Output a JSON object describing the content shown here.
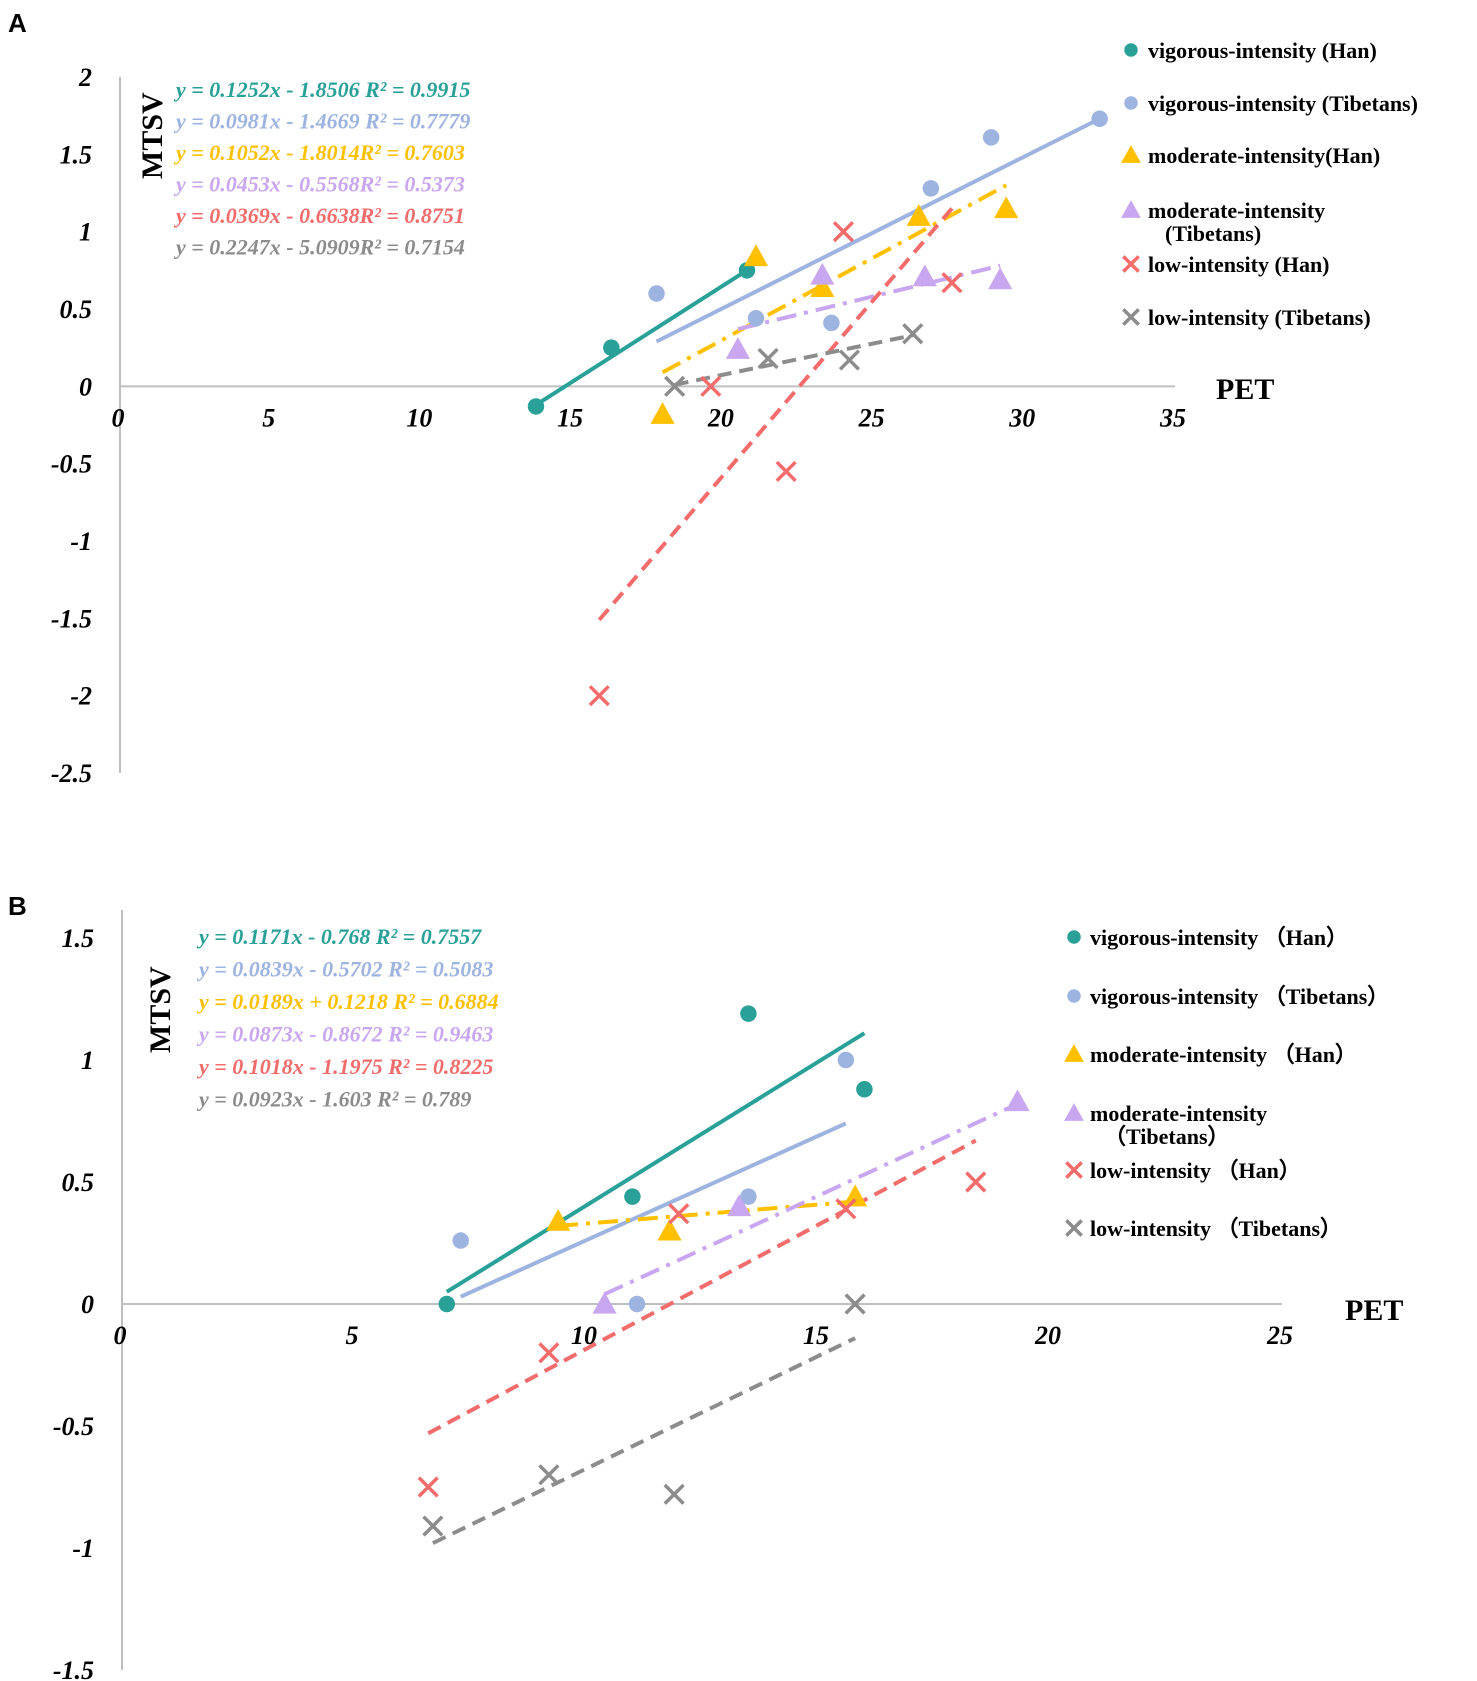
{
  "chart_data": [
    {
      "type": "scatter",
      "panel": "A",
      "xlabel": "PET",
      "ylabel": "MTSV",
      "xlim": [
        0,
        35
      ],
      "ylim": [
        -2.5,
        2
      ],
      "x_ticks": [
        "0",
        "5",
        "10",
        "15",
        "20",
        "25",
        "30",
        "35"
      ],
      "y_ticks": [
        "2",
        "1.5",
        "1",
        "0.5",
        "0",
        "-0.5",
        "-1",
        "-1.5",
        "-2",
        "-2.5"
      ],
      "equations": [
        "y = 0.1252x - 1.8506 R² = 0.9915",
        "y = 0.0981x - 1.4669 R² = 0.7779",
        "y = 0.1052x - 1.8014R² = 0.7603",
        "y = 0.0453x - 0.5568R² = 0.5373",
        "y = 0.0369x - 0.6638R² = 0.8751",
        "y = 0.2247x - 5.0909R² = 0.7154"
      ],
      "series": [
        {
          "name": "vigorous-intensity (Han)",
          "color": "#2aa198",
          "marker": "circle",
          "line": "solid",
          "points": [
            [
              13.8,
              -0.13
            ],
            [
              16.3,
              0.25
            ],
            [
              20.8,
              0.75
            ]
          ],
          "fit": [
            [
              13.8,
              -0.12
            ],
            [
              20.8,
              0.75
            ]
          ]
        },
        {
          "name": "vigorous-intensity (Tibetans)",
          "color": "#9db3e0",
          "marker": "circle",
          "line": "solid",
          "points": [
            [
              17.8,
              0.6
            ],
            [
              21.1,
              0.44
            ],
            [
              23.6,
              0.41
            ],
            [
              26.9,
              1.28
            ],
            [
              28.9,
              1.61
            ],
            [
              32.5,
              1.73
            ]
          ],
          "fit": [
            [
              17.8,
              0.29
            ],
            [
              32.5,
              1.73
            ]
          ]
        },
        {
          "name": "moderate-intensity(Han)",
          "color": "#ffc000",
          "marker": "triangle",
          "line": "dashdot",
          "points": [
            [
              18.0,
              -0.18
            ],
            [
              21.1,
              0.84
            ],
            [
              23.3,
              0.64
            ],
            [
              26.5,
              1.1
            ],
            [
              29.4,
              1.15
            ]
          ],
          "fit": [
            [
              18.0,
              0.09
            ],
            [
              29.4,
              1.3
            ]
          ]
        },
        {
          "name": "moderate-intensity (Tibetans)",
          "color": "#c9a6f0",
          "marker": "triangle",
          "line": "dashdot",
          "points": [
            [
              20.5,
              0.24
            ],
            [
              23.3,
              0.72
            ],
            [
              26.7,
              0.71
            ],
            [
              29.2,
              0.69
            ]
          ],
          "fit": [
            [
              20.5,
              0.37
            ],
            [
              29.2,
              0.78
            ]
          ]
        },
        {
          "name": "low-intensity (Han)",
          "color": "#f26c6c",
          "marker": "x",
          "line": "dashed",
          "points": [
            [
              15.9,
              -2.0
            ],
            [
              19.6,
              0.0
            ],
            [
              22.1,
              -0.55
            ],
            [
              24.0,
              1.0
            ],
            [
              27.6,
              0.67
            ]
          ],
          "fit": [
            [
              15.9,
              -1.51
            ],
            [
              27.6,
              1.15
            ]
          ]
        },
        {
          "name": "low-intensity (Tibetans)",
          "color": "#8c8c8c",
          "marker": "x",
          "line": "dashed",
          "points": [
            [
              18.4,
              0.0
            ],
            [
              21.5,
              0.18
            ],
            [
              24.2,
              0.17
            ],
            [
              26.3,
              0.34
            ]
          ],
          "fit": [
            [
              18.4,
              0.01
            ],
            [
              26.3,
              0.33
            ]
          ]
        }
      ]
    },
    {
      "type": "scatter",
      "panel": "B",
      "xlabel": "PET",
      "ylabel": "MTSV",
      "xlim": [
        0,
        25
      ],
      "ylim": [
        -1.5,
        1.5
      ],
      "x_ticks": [
        "0",
        "5",
        "10",
        "15",
        "20",
        "25"
      ],
      "y_ticks": [
        "1.5",
        "1",
        "0.5",
        "0",
        "-0.5",
        "-1",
        "-1.5"
      ],
      "equations": [
        "y = 0.1171x - 0.768 R² = 0.7557",
        "y = 0.0839x - 0.5702 R² = 0.5083",
        "y = 0.0189x + 0.1218 R² = 0.6884",
        "y = 0.0873x - 0.8672 R² = 0.9463",
        "y = 0.1018x - 1.1975 R² = 0.8225",
        "y = 0.0923x - 1.603 R² = 0.789"
      ],
      "series": [
        {
          "name": "vigorous-intensity （Han）",
          "color": "#2aa198",
          "marker": "circle",
          "line": "solid",
          "points": [
            [
              7.0,
              0.0
            ],
            [
              11.0,
              0.44
            ],
            [
              13.5,
              1.19
            ],
            [
              16.0,
              0.88
            ]
          ],
          "fit": [
            [
              7.0,
              0.05
            ],
            [
              16.0,
              1.11
            ]
          ]
        },
        {
          "name": "vigorous-intensity （Tibetans）",
          "color": "#9db3e0",
          "marker": "circle",
          "line": "solid",
          "points": [
            [
              7.3,
              0.26
            ],
            [
              11.1,
              0.0
            ],
            [
              13.5,
              0.44
            ],
            [
              15.6,
              1.0
            ]
          ],
          "fit": [
            [
              7.3,
              0.03
            ],
            [
              15.6,
              0.74
            ]
          ]
        },
        {
          "name": "moderate-intensity （Han）",
          "color": "#ffc000",
          "marker": "triangle",
          "line": "dashdot",
          "points": [
            [
              9.4,
              0.34
            ],
            [
              11.8,
              0.3
            ],
            [
              15.8,
              0.44
            ]
          ],
          "fit": [
            [
              9.4,
              0.32
            ],
            [
              15.8,
              0.42
            ]
          ]
        },
        {
          "name": "moderate-intensity （Tibetans）",
          "color": "#c9a6f0",
          "marker": "triangle",
          "line": "dashdot",
          "points": [
            [
              10.4,
              0.0
            ],
            [
              13.3,
              0.4
            ],
            [
              19.3,
              0.83
            ]
          ],
          "fit": [
            [
              10.4,
              0.04
            ],
            [
              19.3,
              0.82
            ]
          ]
        },
        {
          "name": "low-intensity （Han）",
          "color": "#f26c6c",
          "marker": "x",
          "line": "dashed",
          "points": [
            [
              6.6,
              -0.75
            ],
            [
              9.2,
              -0.2
            ],
            [
              12.0,
              0.37
            ],
            [
              15.6,
              0.39
            ],
            [
              18.4,
              0.5
            ]
          ],
          "fit": [
            [
              6.6,
              -0.53
            ],
            [
              18.4,
              0.67
            ]
          ]
        },
        {
          "name": "low-intensity （Tibetans）",
          "color": "#8c8c8c",
          "marker": "x",
          "line": "dashed",
          "points": [
            [
              6.7,
              -0.91
            ],
            [
              9.2,
              -0.7
            ],
            [
              11.9,
              -0.78
            ],
            [
              15.8,
              0.0
            ]
          ],
          "fit": [
            [
              6.7,
              -0.98
            ],
            [
              15.8,
              -0.14
            ]
          ]
        }
      ]
    }
  ]
}
